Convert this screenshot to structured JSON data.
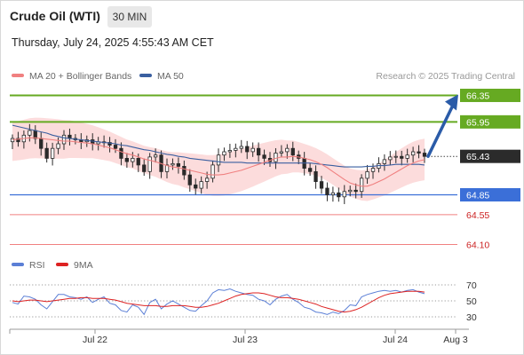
{
  "header": {
    "title": "Crude Oil (WTI)",
    "interval": "30 MIN",
    "timestamp": "Thursday, July 24, 2025 4:55:43 AM CET"
  },
  "legend": {
    "ma20": "MA 20 + Bollinger Bands",
    "ma50": "MA 50",
    "credit": "Research © 2025 Trading Central",
    "rsi": "RSI",
    "ma9": "9MA"
  },
  "colors": {
    "ma20": "#f08080",
    "ma50": "#3a5fa0",
    "band": "#fcdcdc",
    "resistance": "#66aa22",
    "support": "#3b6fd8",
    "extra_support": "#f08080",
    "arrow": "#2a5ba8",
    "candle": "#2a2a2a",
    "rsi": "#5b7fd6",
    "rsi_ma": "#dd2222"
  },
  "chart_data": [
    {
      "type": "candlestick",
      "title": "Crude Oil (WTI)",
      "interval": "30 MIN",
      "ylim": [
        64.0,
        66.45
      ],
      "x_ticks": [
        "Jul 22",
        "Jul 23",
        "Jul 24",
        "Aug 3"
      ],
      "closes": [
        65.7,
        65.65,
        65.75,
        65.82,
        65.7,
        65.55,
        65.4,
        65.55,
        65.62,
        65.75,
        65.7,
        65.68,
        65.65,
        65.68,
        65.62,
        65.65,
        65.64,
        65.6,
        65.55,
        65.4,
        65.35,
        65.4,
        65.3,
        65.2,
        65.42,
        65.45,
        65.2,
        65.3,
        65.32,
        65.28,
        65.15,
        65.0,
        64.95,
        65.05,
        65.1,
        65.3,
        65.45,
        65.5,
        65.52,
        65.55,
        65.58,
        65.5,
        65.55,
        65.45,
        65.4,
        65.35,
        65.48,
        65.5,
        65.55,
        65.45,
        65.4,
        65.25,
        65.2,
        65.05,
        64.95,
        64.85,
        64.88,
        64.82,
        64.9,
        64.92,
        64.9,
        65.1,
        65.2,
        65.25,
        65.32,
        65.38,
        65.42,
        65.43,
        65.4,
        65.45,
        65.5,
        65.48,
        65.43
      ],
      "ma20": [
        65.68,
        65.69,
        65.7,
        65.71,
        65.71,
        65.7,
        65.69,
        65.68,
        65.67,
        65.66,
        65.66,
        65.65,
        65.64,
        65.63,
        65.62,
        65.6,
        65.58,
        65.56,
        65.53,
        65.5,
        65.47,
        65.45,
        65.42,
        65.39,
        65.37,
        65.35,
        65.32,
        65.29,
        65.27,
        65.26,
        65.24,
        65.22,
        65.2,
        65.18,
        65.16,
        65.15,
        65.15,
        65.16,
        65.18,
        65.2,
        65.22,
        65.25,
        65.28,
        65.31,
        65.34,
        65.37,
        65.4,
        65.42,
        65.42,
        65.43,
        65.42,
        65.4,
        65.38,
        65.35,
        65.31,
        65.26,
        65.2,
        65.14,
        65.08,
        65.03,
        65.0,
        64.98,
        64.98,
        65.01,
        65.05,
        65.09,
        65.14,
        65.19,
        65.24,
        65.29,
        65.33,
        65.36,
        65.38
      ],
      "ma50": [
        65.9,
        65.88,
        65.86,
        65.84,
        65.82,
        65.8,
        65.78,
        65.75,
        65.73,
        65.71,
        65.7,
        65.69,
        65.68,
        65.67,
        65.66,
        65.65,
        65.64,
        65.63,
        65.62,
        65.6,
        65.59,
        65.57,
        65.55,
        65.53,
        65.52,
        65.5,
        65.48,
        65.46,
        65.45,
        65.43,
        65.42,
        65.4,
        65.39,
        65.38,
        65.37,
        65.36,
        65.35,
        65.34,
        65.34,
        65.34,
        65.34,
        65.33,
        65.33,
        65.33,
        65.33,
        65.33,
        65.33,
        65.33,
        65.33,
        65.33,
        65.33,
        65.33,
        65.33,
        65.32,
        65.31,
        65.3,
        65.29,
        65.28,
        65.27,
        65.27,
        65.27,
        65.27,
        65.28,
        65.28,
        65.29,
        65.29,
        65.3,
        65.31,
        65.31,
        65.31,
        65.31,
        65.31,
        65.3
      ],
      "levels": [
        {
          "label": "66.35",
          "value": 66.35,
          "kind": "resistance"
        },
        {
          "label": "65.95",
          "value": 65.95,
          "kind": "resistance"
        },
        {
          "label": "65.43",
          "value": 65.43,
          "kind": "last"
        },
        {
          "label": "64.85",
          "value": 64.85,
          "kind": "support"
        },
        {
          "label": "64.55",
          "value": 64.55,
          "kind": "extra_support"
        },
        {
          "label": "64.10",
          "value": 64.1,
          "kind": "extra_support"
        }
      ],
      "projection": {
        "from": 65.43,
        "to": 66.35
      }
    },
    {
      "type": "line",
      "title": "RSI",
      "ylim": [
        20,
        80
      ],
      "y_ticks": [
        "70",
        "50",
        "30"
      ],
      "series": [
        {
          "name": "RSI",
          "values": [
            48,
            46,
            56,
            55,
            52,
            45,
            40,
            49,
            58,
            58,
            55,
            54,
            52,
            55,
            48,
            52,
            55,
            47,
            45,
            38,
            36,
            45,
            42,
            33,
            48,
            52,
            40,
            46,
            50,
            46,
            42,
            38,
            37,
            44,
            50,
            60,
            64,
            63,
            65,
            62,
            60,
            58,
            57,
            52,
            50,
            45,
            52,
            56,
            58,
            52,
            48,
            42,
            40,
            36,
            35,
            33,
            36,
            34,
            38,
            45,
            44,
            55,
            58,
            60,
            62,
            63,
            62,
            63,
            61,
            63,
            64,
            61,
            59
          ]
        },
        {
          "name": "9MA",
          "values": [
            50,
            49,
            50,
            51,
            51,
            50,
            49,
            50,
            51,
            52,
            53,
            53,
            54,
            54,
            53,
            53,
            53,
            52,
            51,
            49,
            47,
            46,
            45,
            44,
            44,
            44,
            43,
            43,
            44,
            44,
            44,
            43,
            42,
            42,
            43,
            45,
            47,
            50,
            53,
            56,
            58,
            59,
            60,
            60,
            59,
            57,
            55,
            54,
            54,
            53,
            52,
            50,
            48,
            46,
            43,
            41,
            39,
            37,
            36,
            37,
            39,
            42,
            46,
            50,
            54,
            57,
            59,
            60,
            61,
            62,
            62,
            62,
            61
          ]
        }
      ]
    }
  ]
}
